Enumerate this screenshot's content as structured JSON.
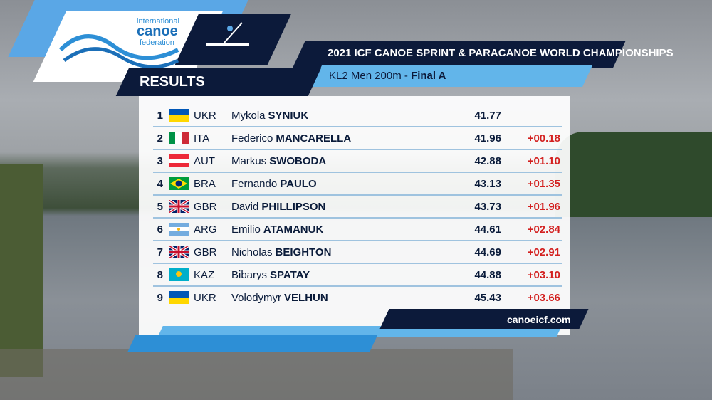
{
  "logo": {
    "line1": "international",
    "line2": "canoe",
    "line3": "federation"
  },
  "header": {
    "section": "RESULTS",
    "title": "2021 ICF CANOE SPRINT & PARACANOE WORLD CHAMPIONSHIPS",
    "event": "KL2 Men 200m -",
    "phase": "Final A"
  },
  "table": {
    "rows": [
      [
        "1",
        "UKR",
        "Mykola",
        "SYNIUK",
        "41.77",
        null
      ],
      [
        "2",
        "ITA",
        "Federico",
        "MANCARELLA",
        "41.96",
        "+00.18"
      ],
      [
        "3",
        "AUT",
        "Markus",
        "SWOBODA",
        "42.88",
        "+01.10"
      ],
      [
        "4",
        "BRA",
        "Fernando",
        "PAULO",
        "43.13",
        "+01.35"
      ],
      [
        "5",
        "GBR",
        "David",
        "PHILLIPSON",
        "43.73",
        "+01.96"
      ],
      [
        "6",
        "ARG",
        "Emilio",
        "ATAMANUK",
        "44.61",
        "+02.84"
      ],
      [
        "7",
        "GBR",
        "Nicholas",
        "BEIGHTON",
        "44.69",
        "+02.91"
      ],
      [
        "8",
        "KAZ",
        "Bibarys",
        "SPATAY",
        "44.88",
        "+03.10"
      ],
      [
        "9",
        "UKR",
        "Volodymyr",
        "VELHUN",
        "45.43",
        "+03.66"
      ]
    ]
  },
  "footer": {
    "url": "canoeicf.com"
  }
}
